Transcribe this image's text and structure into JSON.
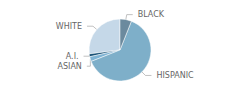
{
  "chart_data": {
    "type": "pie",
    "categories": [
      "WHITE",
      "A.I.",
      "ASIAN",
      "HISPANIC",
      "BLACK"
    ],
    "values": [
      27,
      1.5,
      2.5,
      63,
      6
    ],
    "colors": [
      "#c5d8e8",
      "#1a5276",
      "#7fb3d3",
      "#7eafc9",
      "#6b8a9e"
    ]
  }
}
